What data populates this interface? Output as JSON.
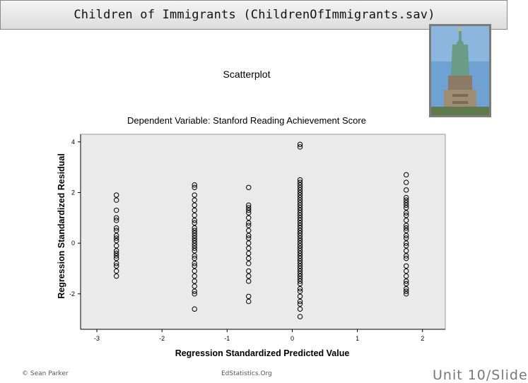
{
  "slide": {
    "title": "Children of Immigrants (ChildrenOfImmigrants.sav)",
    "footer_left": "© Sean Parker",
    "footer_center": "EdStatistics.Org",
    "footer_right": "Unit 10/Slide"
  },
  "photo": {
    "icon": "statue-of-liberty-icon"
  },
  "colors": {
    "plot_background": "#eaeaea",
    "marker": "#000000",
    "sky": "#6fa2d2",
    "statue": "#6a9c88"
  },
  "chart_data": {
    "type": "scatter",
    "title": "Scatterplot",
    "subtitle": "Dependent Variable: Stanford Reading Achievement Score",
    "xlabel": "Regression Standardized Predicted Value",
    "ylabel": "Regression Standardized Residual",
    "xlim": [
      -3.25,
      2.35
    ],
    "ylim": [
      -3.4,
      4.3
    ],
    "xticks": [
      "-3",
      "-2",
      "-1",
      "0",
      "1",
      "2"
    ],
    "yticks": [
      "4",
      "2",
      "0",
      "-2"
    ],
    "xtick_values": [
      -3,
      -2,
      -1,
      0,
      1,
      2
    ],
    "ytick_values": [
      4,
      2,
      0,
      -2
    ],
    "grid": false,
    "marker": "open-circle",
    "points": [
      {
        "x": -2.7,
        "y": 1.9
      },
      {
        "x": -2.7,
        "y": 1.7
      },
      {
        "x": -2.7,
        "y": 1.3
      },
      {
        "x": -2.7,
        "y": 1.0
      },
      {
        "x": -2.7,
        "y": 0.9
      },
      {
        "x": -2.7,
        "y": 0.6
      },
      {
        "x": -2.7,
        "y": 0.5
      },
      {
        "x": -2.7,
        "y": 0.3
      },
      {
        "x": -2.7,
        "y": 0.2
      },
      {
        "x": -2.7,
        "y": 0.1
      },
      {
        "x": -2.7,
        "y": -0.1
      },
      {
        "x": -2.7,
        "y": -0.3
      },
      {
        "x": -2.7,
        "y": -0.4
      },
      {
        "x": -2.7,
        "y": -0.5
      },
      {
        "x": -2.7,
        "y": -0.6
      },
      {
        "x": -2.7,
        "y": -0.8
      },
      {
        "x": -2.7,
        "y": -0.9
      },
      {
        "x": -2.7,
        "y": -1.1
      },
      {
        "x": -2.7,
        "y": -1.3
      },
      {
        "x": -1.5,
        "y": 2.3
      },
      {
        "x": -1.5,
        "y": 2.2
      },
      {
        "x": -1.5,
        "y": 1.9
      },
      {
        "x": -1.5,
        "y": 1.7
      },
      {
        "x": -1.5,
        "y": 1.5
      },
      {
        "x": -1.5,
        "y": 1.3
      },
      {
        "x": -1.5,
        "y": 1.1
      },
      {
        "x": -1.5,
        "y": 0.9
      },
      {
        "x": -1.5,
        "y": 0.8
      },
      {
        "x": -1.5,
        "y": 0.6
      },
      {
        "x": -1.5,
        "y": 0.5
      },
      {
        "x": -1.5,
        "y": 0.4
      },
      {
        "x": -1.5,
        "y": 0.3
      },
      {
        "x": -1.5,
        "y": 0.2
      },
      {
        "x": -1.5,
        "y": 0.1
      },
      {
        "x": -1.5,
        "y": 0.0
      },
      {
        "x": -1.5,
        "y": -0.1
      },
      {
        "x": -1.5,
        "y": -0.2
      },
      {
        "x": -1.5,
        "y": -0.3
      },
      {
        "x": -1.5,
        "y": -0.5
      },
      {
        "x": -1.5,
        "y": -0.6
      },
      {
        "x": -1.5,
        "y": -0.8
      },
      {
        "x": -1.5,
        "y": -0.9
      },
      {
        "x": -1.5,
        "y": -1.1
      },
      {
        "x": -1.5,
        "y": -1.3
      },
      {
        "x": -1.5,
        "y": -1.5
      },
      {
        "x": -1.5,
        "y": -1.7
      },
      {
        "x": -1.5,
        "y": -1.9
      },
      {
        "x": -1.5,
        "y": -2.0
      },
      {
        "x": -1.5,
        "y": -2.6
      },
      {
        "x": -0.67,
        "y": 2.2
      },
      {
        "x": -0.67,
        "y": 1.5
      },
      {
        "x": -0.67,
        "y": 1.4
      },
      {
        "x": -0.67,
        "y": 1.3
      },
      {
        "x": -0.67,
        "y": 1.2
      },
      {
        "x": -0.67,
        "y": 1.0
      },
      {
        "x": -0.67,
        "y": 0.8
      },
      {
        "x": -0.67,
        "y": 0.7
      },
      {
        "x": -0.67,
        "y": 0.5
      },
      {
        "x": -0.67,
        "y": 0.3
      },
      {
        "x": -0.67,
        "y": 0.2
      },
      {
        "x": -0.67,
        "y": 0.0
      },
      {
        "x": -0.67,
        "y": -0.2
      },
      {
        "x": -0.67,
        "y": -0.4
      },
      {
        "x": -0.67,
        "y": -0.6
      },
      {
        "x": -0.67,
        "y": -0.8
      },
      {
        "x": -0.67,
        "y": -1.1
      },
      {
        "x": -0.67,
        "y": -1.3
      },
      {
        "x": -0.67,
        "y": -1.5
      },
      {
        "x": -0.67,
        "y": -2.1
      },
      {
        "x": -0.67,
        "y": -2.3
      },
      {
        "x": 0.12,
        "y": 3.9
      },
      {
        "x": 0.12,
        "y": 3.8
      },
      {
        "x": 0.12,
        "y": 2.5
      },
      {
        "x": 0.12,
        "y": 2.4
      },
      {
        "x": 0.12,
        "y": 2.3
      },
      {
        "x": 0.12,
        "y": 2.2
      },
      {
        "x": 0.12,
        "y": 2.1
      },
      {
        "x": 0.12,
        "y": 2.0
      },
      {
        "x": 0.12,
        "y": 1.9
      },
      {
        "x": 0.12,
        "y": 1.8
      },
      {
        "x": 0.12,
        "y": 1.7
      },
      {
        "x": 0.12,
        "y": 1.6
      },
      {
        "x": 0.12,
        "y": 1.5
      },
      {
        "x": 0.12,
        "y": 1.4
      },
      {
        "x": 0.12,
        "y": 1.3
      },
      {
        "x": 0.12,
        "y": 1.2
      },
      {
        "x": 0.12,
        "y": 1.1
      },
      {
        "x": 0.12,
        "y": 1.0
      },
      {
        "x": 0.12,
        "y": 0.9
      },
      {
        "x": 0.12,
        "y": 0.8
      },
      {
        "x": 0.12,
        "y": 0.7
      },
      {
        "x": 0.12,
        "y": 0.6
      },
      {
        "x": 0.12,
        "y": 0.5
      },
      {
        "x": 0.12,
        "y": 0.4
      },
      {
        "x": 0.12,
        "y": 0.3
      },
      {
        "x": 0.12,
        "y": 0.2
      },
      {
        "x": 0.12,
        "y": 0.1
      },
      {
        "x": 0.12,
        "y": 0.0
      },
      {
        "x": 0.12,
        "y": -0.1
      },
      {
        "x": 0.12,
        "y": -0.2
      },
      {
        "x": 0.12,
        "y": -0.3
      },
      {
        "x": 0.12,
        "y": -0.4
      },
      {
        "x": 0.12,
        "y": -0.5
      },
      {
        "x": 0.12,
        "y": -0.6
      },
      {
        "x": 0.12,
        "y": -0.7
      },
      {
        "x": 0.12,
        "y": -0.8
      },
      {
        "x": 0.12,
        "y": -0.9
      },
      {
        "x": 0.12,
        "y": -1.0
      },
      {
        "x": 0.12,
        "y": -1.1
      },
      {
        "x": 0.12,
        "y": -1.2
      },
      {
        "x": 0.12,
        "y": -1.3
      },
      {
        "x": 0.12,
        "y": -1.4
      },
      {
        "x": 0.12,
        "y": -1.5
      },
      {
        "x": 0.12,
        "y": -1.6
      },
      {
        "x": 0.12,
        "y": -1.8
      },
      {
        "x": 0.12,
        "y": -1.9
      },
      {
        "x": 0.12,
        "y": -2.1
      },
      {
        "x": 0.12,
        "y": -2.3
      },
      {
        "x": 0.12,
        "y": -2.4
      },
      {
        "x": 0.12,
        "y": -2.6
      },
      {
        "x": 0.12,
        "y": -2.9
      },
      {
        "x": 1.75,
        "y": 2.7
      },
      {
        "x": 1.75,
        "y": 2.4
      },
      {
        "x": 1.75,
        "y": 2.1
      },
      {
        "x": 1.75,
        "y": 1.8
      },
      {
        "x": 1.75,
        "y": 1.7
      },
      {
        "x": 1.75,
        "y": 1.6
      },
      {
        "x": 1.75,
        "y": 1.5
      },
      {
        "x": 1.75,
        "y": 1.4
      },
      {
        "x": 1.75,
        "y": 1.2
      },
      {
        "x": 1.75,
        "y": 1.1
      },
      {
        "x": 1.75,
        "y": 0.9
      },
      {
        "x": 1.75,
        "y": 0.7
      },
      {
        "x": 1.75,
        "y": 0.6
      },
      {
        "x": 1.75,
        "y": 0.5
      },
      {
        "x": 1.75,
        "y": 0.3
      },
      {
        "x": 1.75,
        "y": 0.2
      },
      {
        "x": 1.75,
        "y": 0.0
      },
      {
        "x": 1.75,
        "y": -0.1
      },
      {
        "x": 1.75,
        "y": -0.3
      },
      {
        "x": 1.75,
        "y": -0.5
      },
      {
        "x": 1.75,
        "y": -0.6
      },
      {
        "x": 1.75,
        "y": -0.9
      },
      {
        "x": 1.75,
        "y": -1.1
      },
      {
        "x": 1.75,
        "y": -1.3
      },
      {
        "x": 1.75,
        "y": -1.5
      },
      {
        "x": 1.75,
        "y": -1.6
      },
      {
        "x": 1.75,
        "y": -1.8
      },
      {
        "x": 1.75,
        "y": -1.9
      },
      {
        "x": 1.75,
        "y": -2.0
      }
    ]
  }
}
